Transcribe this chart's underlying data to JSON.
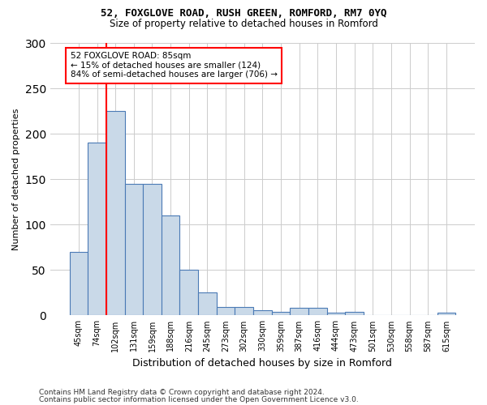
{
  "title1": "52, FOXGLOVE ROAD, RUSH GREEN, ROMFORD, RM7 0YQ",
  "title2": "Size of property relative to detached houses in Romford",
  "xlabel": "Distribution of detached houses by size in Romford",
  "ylabel": "Number of detached properties",
  "bar_labels": [
    "45sqm",
    "74sqm",
    "102sqm",
    "131sqm",
    "159sqm",
    "188sqm",
    "216sqm",
    "245sqm",
    "273sqm",
    "302sqm",
    "330sqm",
    "359sqm",
    "387sqm",
    "416sqm",
    "444sqm",
    "473sqm",
    "501sqm",
    "530sqm",
    "558sqm",
    "587sqm",
    "615sqm"
  ],
  "bar_values": [
    70,
    190,
    225,
    145,
    145,
    110,
    50,
    25,
    9,
    9,
    6,
    4,
    8,
    8,
    3,
    4,
    0,
    0,
    0,
    0,
    3
  ],
  "bar_color": "#c9d9e8",
  "bar_edge_color": "#4a7ab5",
  "grid_color": "#cccccc",
  "annotation_text": "52 FOXGLOVE ROAD: 85sqm\n← 15% of detached houses are smaller (124)\n84% of semi-detached houses are larger (706) →",
  "vline_color": "red",
  "box_edge_color": "red",
  "ylim": [
    0,
    300
  ],
  "yticks": [
    0,
    50,
    100,
    150,
    200,
    250,
    300
  ],
  "footer1": "Contains HM Land Registry data © Crown copyright and database right 2024.",
  "footer2": "Contains public sector information licensed under the Open Government Licence v3.0."
}
